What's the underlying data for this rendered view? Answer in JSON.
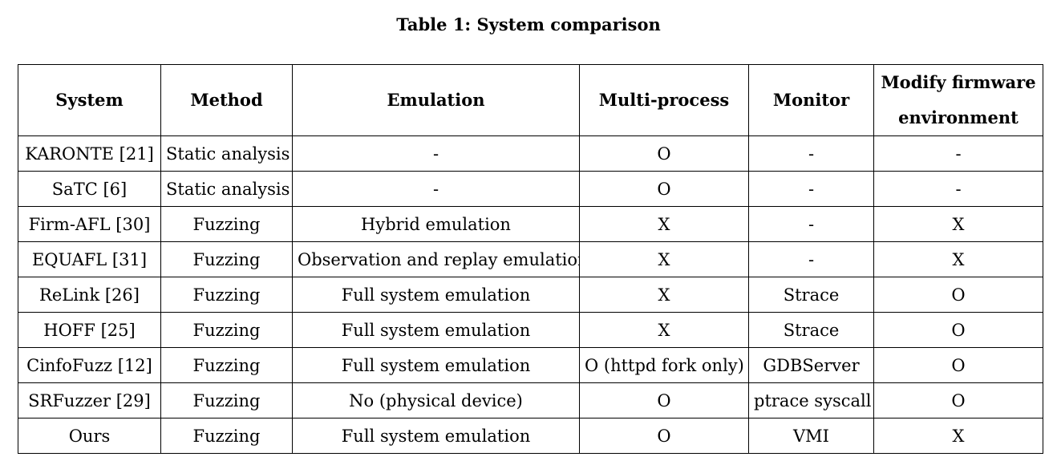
{
  "caption": "Table 1: System comparison",
  "table": {
    "headers": [
      "System",
      "Method",
      "Emulation",
      "Multi-process",
      "Monitor",
      "Modify firmware environment"
    ],
    "rows": [
      [
        "KARONTE [21]",
        "Static analysis",
        "-",
        "O",
        "-",
        "-"
      ],
      [
        "SaTC [6]",
        "Static analysis",
        "-",
        "O",
        "-",
        "-"
      ],
      [
        "Firm-AFL [30]",
        "Fuzzing",
        "Hybrid emulation",
        "X",
        "-",
        "X"
      ],
      [
        "EQUAFL [31]",
        "Fuzzing",
        "Observation and replay emulation",
        "X",
        "-",
        "X"
      ],
      [
        "ReLink [26]",
        "Fuzzing",
        "Full system emulation",
        "X",
        "Strace",
        "O"
      ],
      [
        "HOFF [25]",
        "Fuzzing",
        "Full system emulation",
        "X",
        "Strace",
        "O"
      ],
      [
        "CinfoFuzz [12]",
        "Fuzzing",
        "Full system emulation",
        "O (httpd fork only)",
        "GDBServer",
        "O"
      ],
      [
        "SRFuzzer [29]",
        "Fuzzing",
        "No (physical device)",
        "O",
        "ptrace syscall",
        "O"
      ],
      [
        "Ours",
        "Fuzzing",
        "Full system emulation",
        "O",
        "VMI",
        "X"
      ]
    ]
  }
}
